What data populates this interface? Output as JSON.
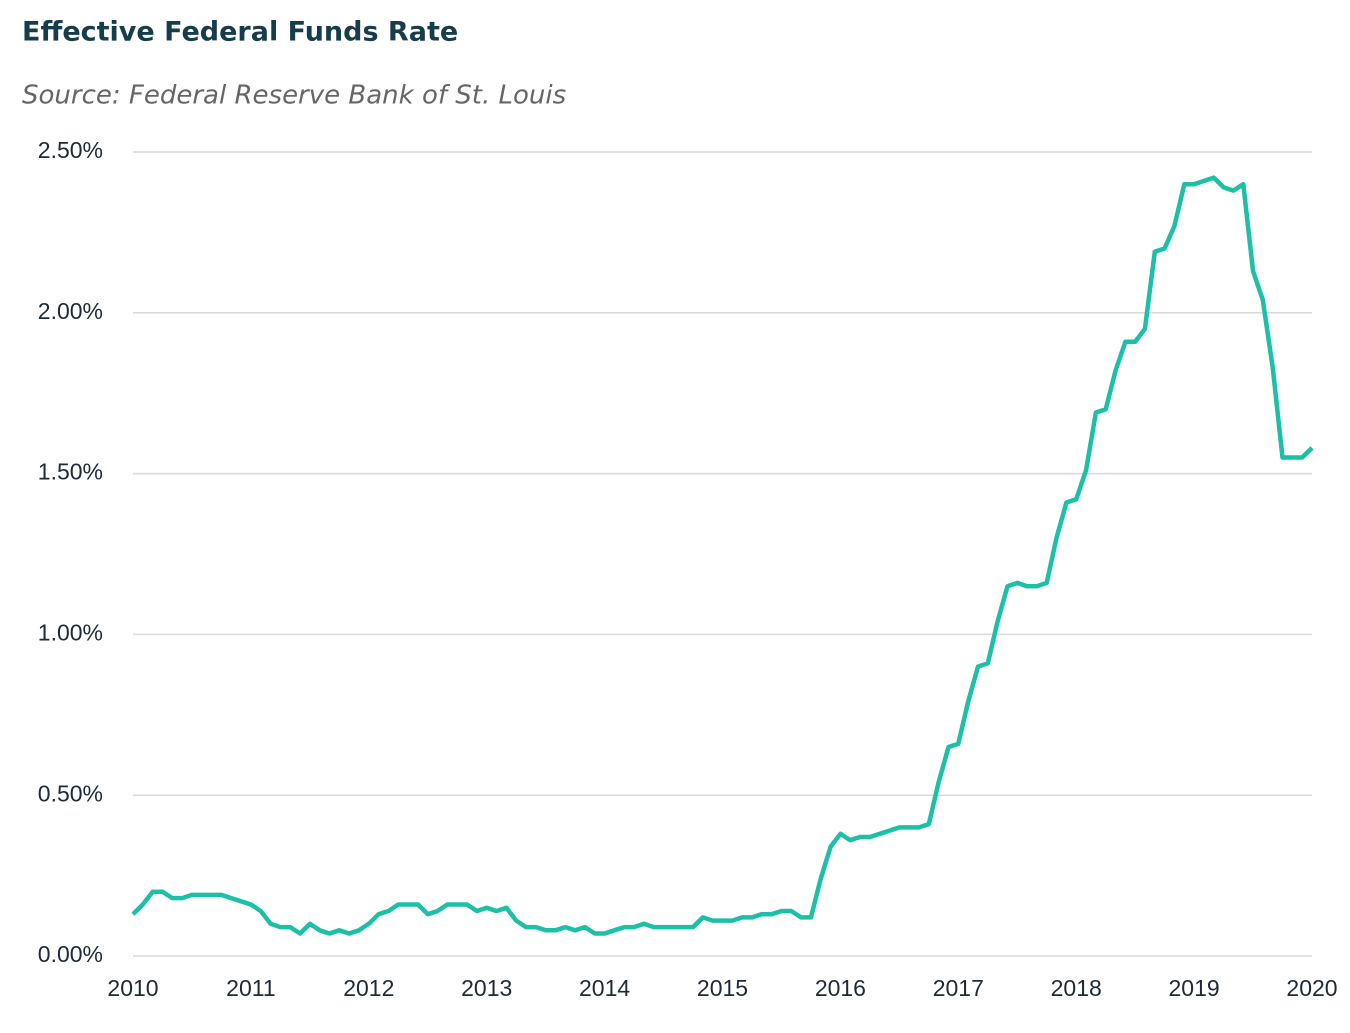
{
  "chart_data": {
    "type": "line",
    "title": "Effective Federal Funds Rate",
    "subtitle": "Source: Federal Reserve Bank of St. Louis",
    "x": [
      2010,
      2010.083,
      2010.167,
      2010.25,
      2010.333,
      2010.417,
      2010.5,
      2010.583,
      2010.667,
      2010.75,
      2010.833,
      2010.917,
      2011,
      2011.083,
      2011.167,
      2011.25,
      2011.333,
      2011.417,
      2011.5,
      2011.583,
      2011.667,
      2011.75,
      2011.833,
      2011.917,
      2012,
      2012.083,
      2012.167,
      2012.25,
      2012.333,
      2012.417,
      2012.5,
      2012.583,
      2012.667,
      2012.75,
      2012.833,
      2012.917,
      2013,
      2013.083,
      2013.167,
      2013.25,
      2013.333,
      2013.417,
      2013.5,
      2013.583,
      2013.667,
      2013.75,
      2013.833,
      2013.917,
      2014,
      2014.083,
      2014.167,
      2014.25,
      2014.333,
      2014.417,
      2014.5,
      2014.583,
      2014.667,
      2014.75,
      2014.833,
      2014.917,
      2015,
      2015.083,
      2015.167,
      2015.25,
      2015.333,
      2015.417,
      2015.5,
      2015.583,
      2015.667,
      2015.75,
      2015.833,
      2015.917,
      2016,
      2016.083,
      2016.167,
      2016.25,
      2016.333,
      2016.417,
      2016.5,
      2016.583,
      2016.667,
      2016.75,
      2016.833,
      2016.917,
      2017,
      2017.083,
      2017.167,
      2017.25,
      2017.333,
      2017.417,
      2017.5,
      2017.583,
      2017.667,
      2017.75,
      2017.833,
      2017.917,
      2018,
      2018.083,
      2018.167,
      2018.25,
      2018.333,
      2018.417,
      2018.5,
      2018.583,
      2018.667,
      2018.75,
      2018.833,
      2018.917,
      2019,
      2019.083,
      2019.167,
      2019.25,
      2019.333,
      2019.417,
      2019.5,
      2019.583,
      2019.667,
      2019.75,
      2019.833,
      2019.917,
      2020
    ],
    "values": [
      0.13,
      0.16,
      0.2,
      0.2,
      0.18,
      0.18,
      0.19,
      0.19,
      0.19,
      0.19,
      0.18,
      0.17,
      0.16,
      0.14,
      0.1,
      0.09,
      0.09,
      0.07,
      0.1,
      0.08,
      0.07,
      0.08,
      0.07,
      0.08,
      0.1,
      0.13,
      0.14,
      0.16,
      0.16,
      0.16,
      0.13,
      0.14,
      0.16,
      0.16,
      0.16,
      0.14,
      0.15,
      0.14,
      0.15,
      0.11,
      0.09,
      0.09,
      0.08,
      0.08,
      0.09,
      0.08,
      0.09,
      0.07,
      0.07,
      0.08,
      0.09,
      0.09,
      0.1,
      0.09,
      0.09,
      0.09,
      0.09,
      0.09,
      0.12,
      0.11,
      0.11,
      0.11,
      0.12,
      0.12,
      0.13,
      0.13,
      0.14,
      0.14,
      0.12,
      0.12,
      0.24,
      0.34,
      0.38,
      0.36,
      0.37,
      0.37,
      0.38,
      0.39,
      0.4,
      0.4,
      0.4,
      0.41,
      0.54,
      0.65,
      0.66,
      0.79,
      0.9,
      0.91,
      1.04,
      1.15,
      1.16,
      1.15,
      1.15,
      1.16,
      1.3,
      1.41,
      1.42,
      1.51,
      1.69,
      1.7,
      1.82,
      1.91,
      1.91,
      1.95,
      2.19,
      2.2,
      2.27,
      2.4,
      2.4,
      2.41,
      2.42,
      2.39,
      2.38,
      2.4,
      2.13,
      2.04,
      1.83,
      1.55,
      1.55,
      1.55,
      1.58
    ],
    "color": "#1cc0a6",
    "xlim": [
      2010,
      2020
    ],
    "xticks": [
      2010,
      2011,
      2012,
      2013,
      2014,
      2015,
      2016,
      2017,
      2018,
      2019,
      2020
    ],
    "ylim": [
      0,
      2.5
    ],
    "yticks": [
      {
        "value": 0,
        "label": "0.00%"
      },
      {
        "value": 0.5,
        "label": "0.50%"
      },
      {
        "value": 1,
        "label": "1.00%"
      },
      {
        "value": 1.5,
        "label": "1.50%"
      },
      {
        "value": 2,
        "label": "2.00%"
      },
      {
        "value": 2.5,
        "label": "2.50%"
      }
    ],
    "grid": true
  }
}
